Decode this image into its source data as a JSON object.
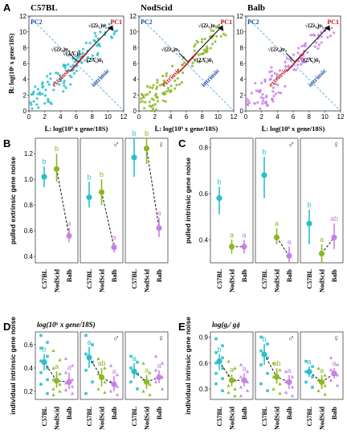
{
  "colors": {
    "C57BL": "#2bbfcc",
    "NodScid": "#8cb824",
    "Balb": "#c981e6",
    "pc1": "#c0141c",
    "pc2": "#1a4aa0",
    "dashed": "#3aa7e0"
  },
  "chart_data": [
    {
      "panel": "A",
      "type": "scatter",
      "subplots": [
        {
          "title": "C57BL",
          "strain": "C57BL"
        },
        {
          "title": "NodScid",
          "strain": "NodScid"
        },
        {
          "title": "Balb",
          "strain": "Balb"
        }
      ],
      "ylabel": "ℝ: log(10⁶ x gene/18S)",
      "xlabel": "𝕃: log(10⁶ x gene/18S)",
      "xticks": [
        "0",
        "2",
        "4",
        "6",
        "8",
        "10",
        "12"
      ],
      "yticks": [
        "0",
        "2",
        "4",
        "6",
        "8",
        "10",
        "12"
      ],
      "xlim": [
        0,
        12
      ],
      "ylim": [
        0,
        12
      ],
      "labels": {
        "pc1": "PC1",
        "pc2": "PC2",
        "extrinsic": "extrinsic",
        "intrinsic": "intrinsic",
        "lambda1_upsilon1": "√(2λ₁)υ₁",
        "lambda2_upsilon2": "√(2λ₂)υ₂",
        "lambda1hat_upsilon1": "√(2Λ̂₁)ῡ₁",
        "lambda2hat_upsilon2": "√(2Λ̂₂)ῡ₂"
      }
    },
    {
      "panel": "B",
      "type": "point_errorbar",
      "ylabel": "pulled extrinsic gene noise",
      "yticks": [
        "0.4",
        "0.6",
        "0.8",
        "1.0",
        "1.2"
      ],
      "ylim": [
        0.35,
        1.32
      ],
      "categories": [
        "C57BL",
        "NodScid",
        "Balb"
      ],
      "subpanels": [
        {
          "sex": "",
          "values": [
            1.02,
            1.08,
            0.56
          ],
          "lower": [
            0.94,
            0.98,
            0.51
          ],
          "upper": [
            1.1,
            1.2,
            0.62
          ],
          "letters": [
            "b",
            "b",
            "a"
          ]
        },
        {
          "sex": "♂",
          "values": [
            0.86,
            0.9,
            0.47
          ],
          "lower": [
            0.78,
            0.8,
            0.43
          ],
          "upper": [
            0.98,
            1.0,
            0.51
          ],
          "letters": [
            "b",
            "b",
            "a"
          ]
        },
        {
          "sex": "♀",
          "values": [
            1.17,
            1.24,
            0.62
          ],
          "lower": [
            1.02,
            1.12,
            0.55
          ],
          "upper": [
            1.32,
            1.32,
            0.7
          ],
          "letters": [
            "b",
            "b",
            "a"
          ]
        }
      ]
    },
    {
      "panel": "C",
      "type": "point_errorbar",
      "ylabel": "pulled intrinsic gene noise",
      "yticks": [
        "0.4",
        "0.6",
        "0.8"
      ],
      "ylim": [
        0.3,
        0.84
      ],
      "categories": [
        "C57BL",
        "NodScid",
        "Balb"
      ],
      "subpanels": [
        {
          "sex": "",
          "values": [
            0.58,
            0.37,
            0.37
          ],
          "lower": [
            0.51,
            0.34,
            0.34
          ],
          "upper": [
            0.63,
            0.4,
            0.4
          ],
          "letters": [
            "b",
            "a",
            "a"
          ]
        },
        {
          "sex": "♂",
          "values": [
            0.68,
            0.41,
            0.33
          ],
          "lower": [
            0.58,
            0.38,
            0.3
          ],
          "upper": [
            0.76,
            0.45,
            0.37
          ],
          "letters": [
            "b",
            "a",
            "a"
          ]
        },
        {
          "sex": "♀",
          "values": [
            0.47,
            0.34,
            0.41
          ],
          "lower": [
            0.38,
            0.3,
            0.36
          ],
          "upper": [
            0.53,
            0.38,
            0.47
          ],
          "letters": [
            "b",
            "a",
            "ab"
          ]
        }
      ]
    },
    {
      "panel": "D",
      "type": "point_errorbar_with_points",
      "header": "log(10⁶ x gene/18S)",
      "ylabel": "individual intrinsic gene noise",
      "yticks": [
        "0.2",
        "0.4",
        "0.6"
      ],
      "ylim": [
        0.13,
        0.71
      ],
      "categories": [
        "C57BL",
        "NodScid",
        "Balb"
      ],
      "subpanels": [
        {
          "sex": "",
          "values": [
            0.45,
            0.29,
            0.28
          ],
          "lower": [
            0.38,
            0.23,
            0.22
          ],
          "upper": [
            0.52,
            0.37,
            0.36
          ],
          "letters": [
            "b",
            "a",
            "a"
          ],
          "points": [
            [
              0.68,
              0.62,
              0.57,
              0.5,
              0.46,
              0.4,
              0.36,
              0.3,
              0.26,
              0.18
            ],
            [
              0.55,
              0.47,
              0.4,
              0.35,
              0.3,
              0.26,
              0.22,
              0.2,
              0.17
            ],
            [
              0.48,
              0.42,
              0.36,
              0.3,
              0.27,
              0.24,
              0.21,
              0.18
            ]
          ]
        },
        {
          "sex": "♂",
          "values": [
            0.49,
            0.32,
            0.26
          ],
          "lower": [
            0.4,
            0.24,
            0.2
          ],
          "upper": [
            0.58,
            0.4,
            0.33
          ],
          "letters": [
            "a",
            "ab",
            "a"
          ],
          "points": [
            [
              0.68,
              0.6,
              0.52,
              0.45,
              0.38,
              0.28,
              0.18
            ],
            [
              0.48,
              0.4,
              0.35,
              0.28,
              0.22,
              0.19
            ],
            [
              0.42,
              0.34,
              0.28,
              0.24,
              0.2,
              0.17
            ]
          ]
        },
        {
          "sex": "♀",
          "values": [
            0.37,
            0.28,
            0.32
          ],
          "lower": [
            0.31,
            0.22,
            0.27
          ],
          "upper": [
            0.44,
            0.34,
            0.38
          ],
          "letters": [
            "a",
            "a",
            "a"
          ],
          "points": [
            [
              0.5,
              0.45,
              0.4,
              0.35,
              0.28,
              0.22
            ],
            [
              0.44,
              0.36,
              0.3,
              0.26,
              0.2,
              0.17
            ],
            [
              0.5,
              0.44,
              0.38,
              0.32,
              0.28,
              0.22
            ]
          ]
        }
      ]
    },
    {
      "panel": "E",
      "type": "point_errorbar_with_points",
      "header": "log(gᵣ/ gₗ)",
      "ylabel": "individual intrinsic gene noise",
      "yticks": [
        "0.3",
        "0.6",
        "0.9"
      ],
      "ylim": [
        0.18,
        0.96
      ],
      "categories": [
        "C57BL",
        "NodScid",
        "Balb"
      ],
      "subpanels": [
        {
          "sex": "",
          "values": [
            0.62,
            0.4,
            0.4
          ],
          "lower": [
            0.52,
            0.33,
            0.33
          ],
          "upper": [
            0.7,
            0.47,
            0.48
          ],
          "letters": [
            "b",
            "a",
            "a"
          ],
          "points": [
            [
              0.88,
              0.8,
              0.72,
              0.66,
              0.6,
              0.54,
              0.48,
              0.42,
              0.36,
              0.28
            ],
            [
              0.62,
              0.54,
              0.46,
              0.4,
              0.34,
              0.3,
              0.26,
              0.22
            ],
            [
              0.58,
              0.5,
              0.44,
              0.38,
              0.32,
              0.28,
              0.22
            ]
          ]
        },
        {
          "sex": "♂",
          "values": [
            0.7,
            0.44,
            0.38
          ],
          "lower": [
            0.58,
            0.36,
            0.3
          ],
          "upper": [
            0.82,
            0.54,
            0.46
          ],
          "letters": [
            "b",
            "ab",
            "a"
          ],
          "points": [
            [
              0.9,
              0.82,
              0.74,
              0.66,
              0.58,
              0.48,
              0.36,
              0.28
            ],
            [
              0.6,
              0.52,
              0.44,
              0.36,
              0.3,
              0.25
            ],
            [
              0.5,
              0.44,
              0.38,
              0.32,
              0.26,
              0.22
            ]
          ]
        },
        {
          "sex": "♀",
          "values": [
            0.5,
            0.38,
            0.48
          ],
          "lower": [
            0.44,
            0.3,
            0.42
          ],
          "upper": [
            0.56,
            0.46,
            0.54
          ],
          "letters": [
            "a",
            "a",
            "a"
          ],
          "points": [
            [
              0.62,
              0.56,
              0.5,
              0.44,
              0.38,
              0.32
            ],
            [
              0.54,
              0.46,
              0.4,
              0.34,
              0.28,
              0.24
            ],
            [
              0.66,
              0.58,
              0.52,
              0.46,
              0.4,
              0.34
            ]
          ]
        }
      ]
    }
  ]
}
